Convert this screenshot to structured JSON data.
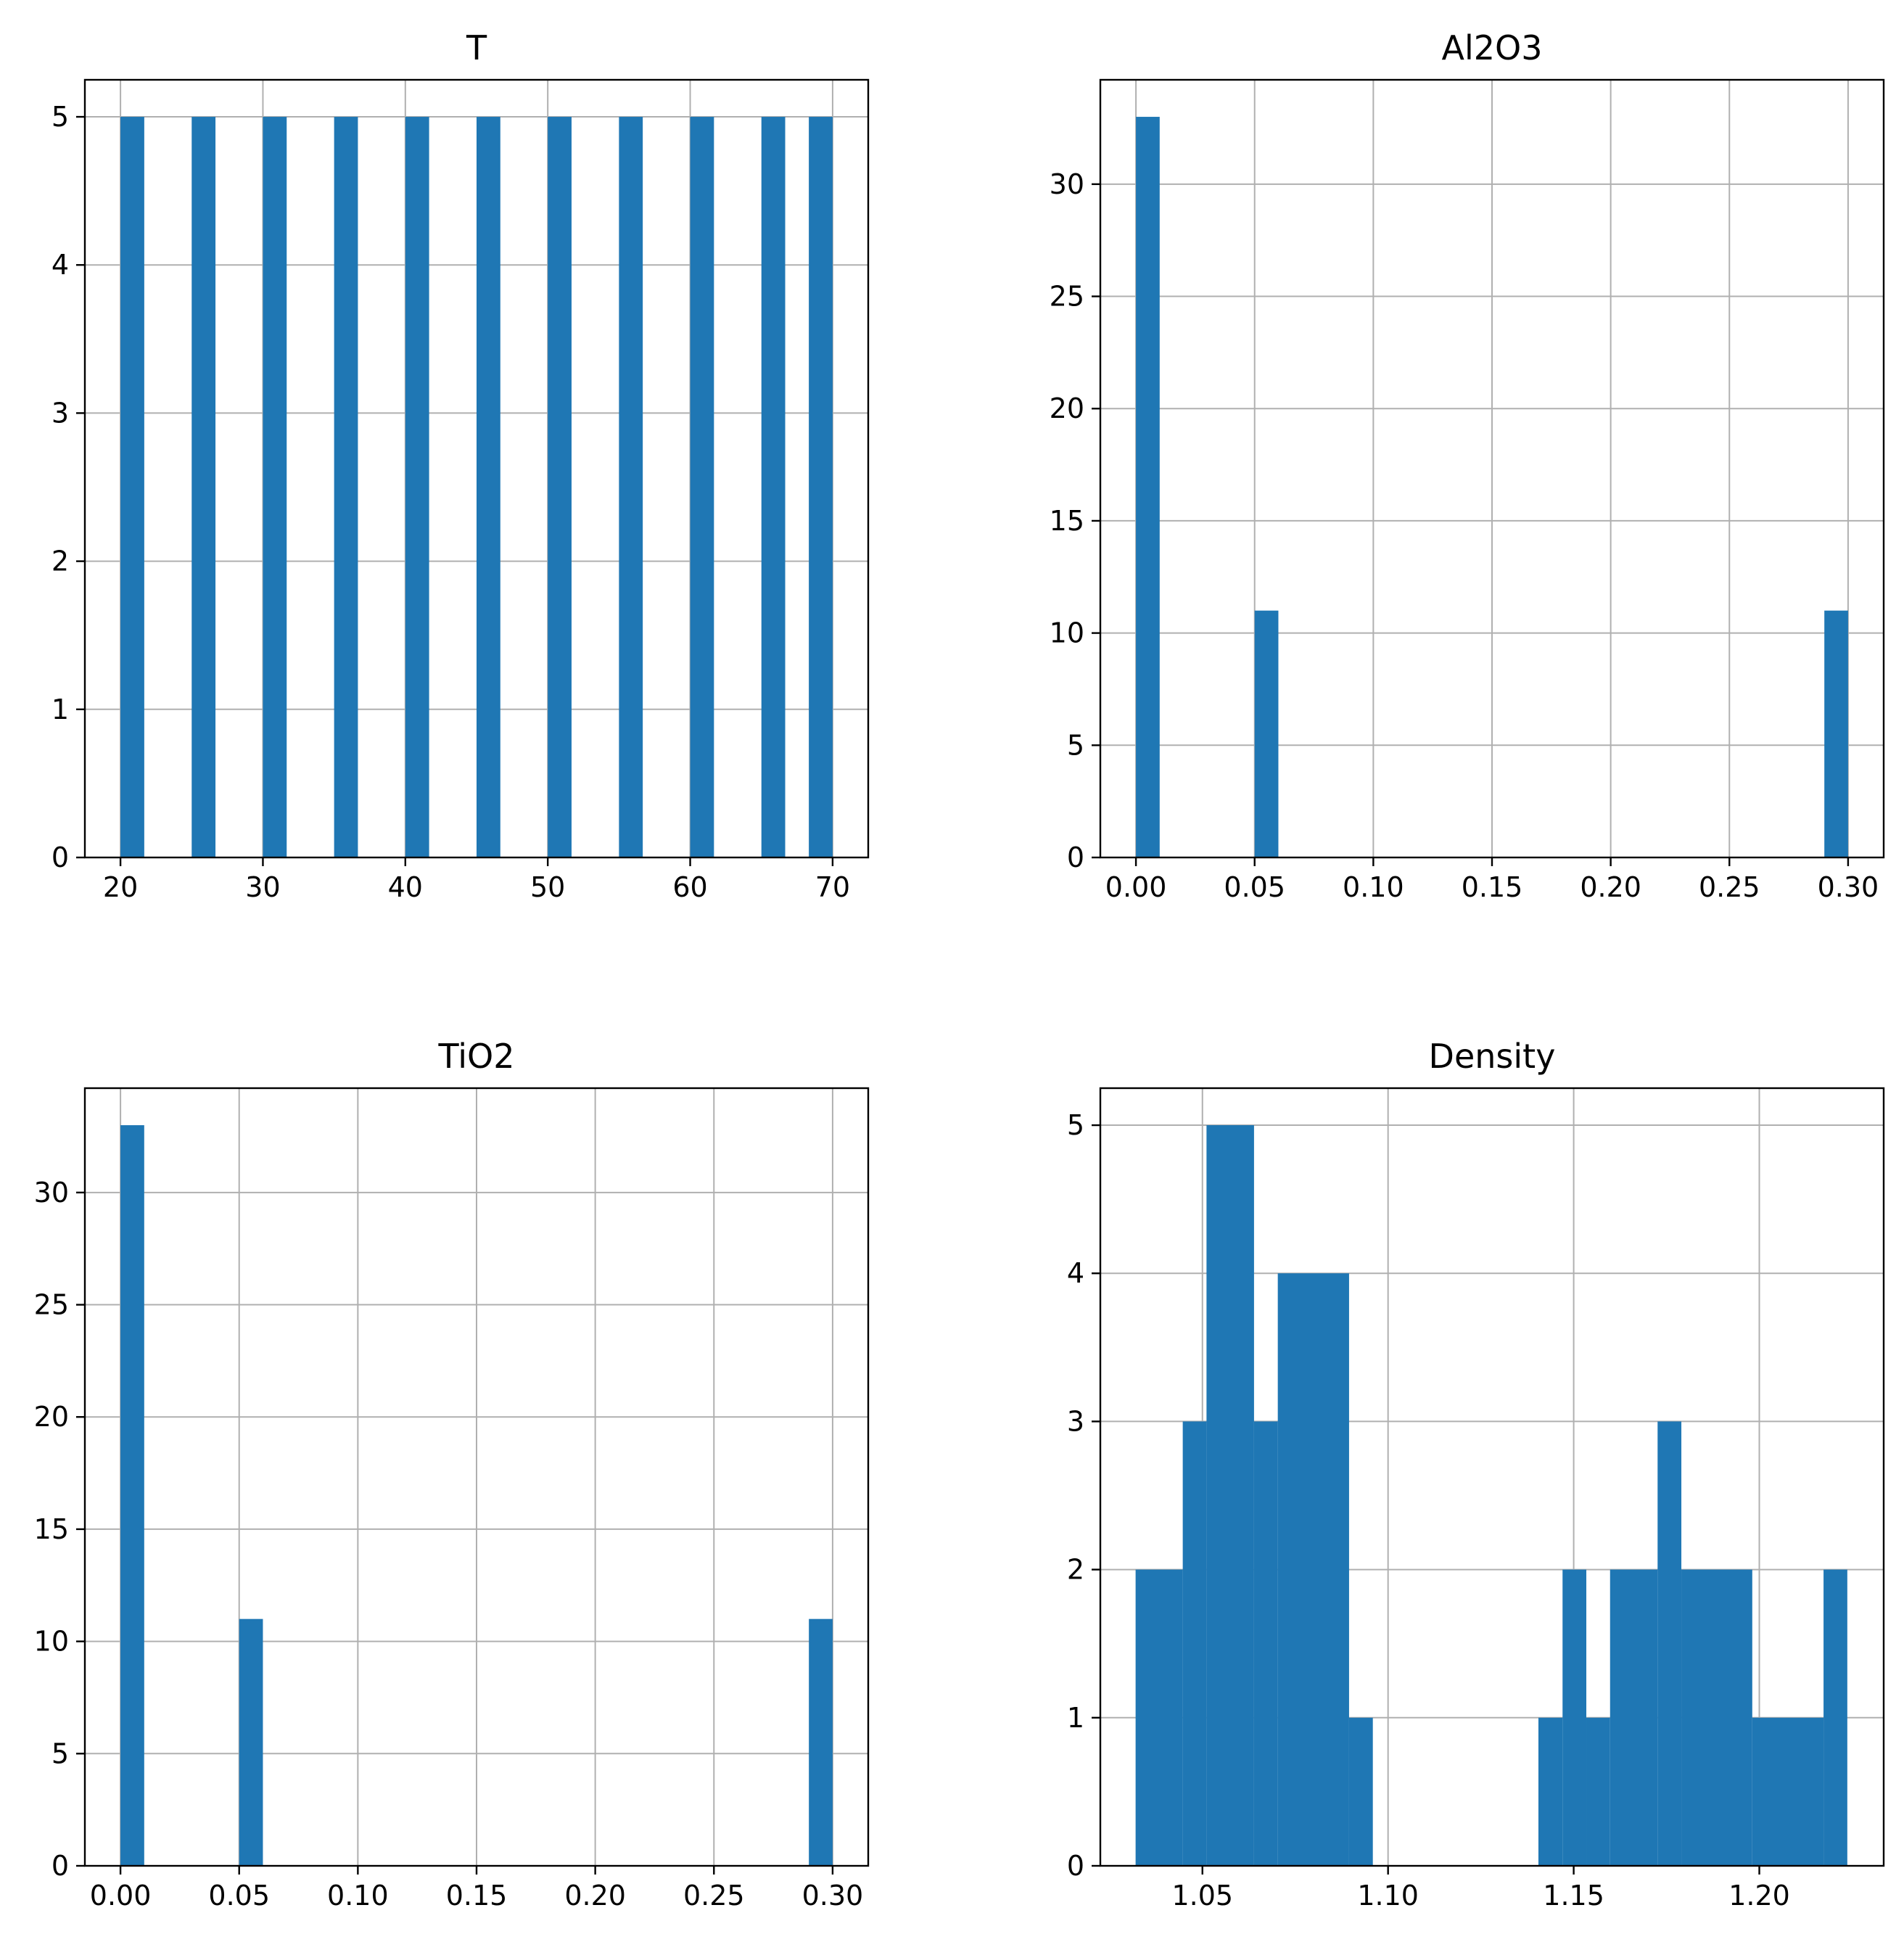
{
  "figure": {
    "background": "#ffffff",
    "bar_color": "#1f77b4",
    "grid_color": "#b0b0b0"
  },
  "chart_data": [
    {
      "type": "bar",
      "title": "T",
      "xlabel": "",
      "ylabel": "",
      "xlim": [
        17.5,
        72.5
      ],
      "ylim": [
        0,
        5.25
      ],
      "xticks": [
        "20",
        "30",
        "40",
        "50",
        "60",
        "70"
      ],
      "xtick_values": [
        20,
        30,
        40,
        50,
        60,
        70
      ],
      "yticks": [
        "0",
        "1",
        "2",
        "3",
        "4",
        "5"
      ],
      "ytick_values": [
        0,
        1,
        2,
        3,
        4,
        5
      ],
      "grid": true,
      "bins": [
        {
          "x0": 20.0,
          "x1": 21.67,
          "count": 5
        },
        {
          "x0": 25.0,
          "x1": 26.67,
          "count": 5
        },
        {
          "x0": 30.0,
          "x1": 31.67,
          "count": 5
        },
        {
          "x0": 35.0,
          "x1": 36.67,
          "count": 5
        },
        {
          "x0": 40.0,
          "x1": 41.67,
          "count": 5
        },
        {
          "x0": 45.0,
          "x1": 46.67,
          "count": 5
        },
        {
          "x0": 50.0,
          "x1": 51.67,
          "count": 5
        },
        {
          "x0": 55.0,
          "x1": 56.67,
          "count": 5
        },
        {
          "x0": 60.0,
          "x1": 61.67,
          "count": 5
        },
        {
          "x0": 65.0,
          "x1": 66.67,
          "count": 5
        },
        {
          "x0": 68.33,
          "x1": 70.0,
          "count": 5
        }
      ]
    },
    {
      "type": "bar",
      "title": "Al2O3",
      "xlabel": "",
      "ylabel": "",
      "xlim": [
        -0.015,
        0.315
      ],
      "ylim": [
        0,
        34.65
      ],
      "xticks": [
        "0.00",
        "0.05",
        "0.10",
        "0.15",
        "0.20",
        "0.25",
        "0.30"
      ],
      "xtick_values": [
        0,
        0.05,
        0.1,
        0.15,
        0.2,
        0.25,
        0.3
      ],
      "yticks": [
        "0",
        "5",
        "10",
        "15",
        "20",
        "25",
        "30"
      ],
      "ytick_values": [
        0,
        5,
        10,
        15,
        20,
        25,
        30
      ],
      "grid": true,
      "bins": [
        {
          "x0": 0.0,
          "x1": 0.01,
          "count": 33
        },
        {
          "x0": 0.05,
          "x1": 0.06,
          "count": 11
        },
        {
          "x0": 0.29,
          "x1": 0.3,
          "count": 11
        }
      ]
    },
    {
      "type": "bar",
      "title": "TiO2",
      "xlabel": "",
      "ylabel": "",
      "xlim": [
        -0.015,
        0.315
      ],
      "ylim": [
        0,
        34.65
      ],
      "xticks": [
        "0.00",
        "0.05",
        "0.10",
        "0.15",
        "0.20",
        "0.25",
        "0.30"
      ],
      "xtick_values": [
        0,
        0.05,
        0.1,
        0.15,
        0.2,
        0.25,
        0.3
      ],
      "yticks": [
        "0",
        "5",
        "10",
        "15",
        "20",
        "25",
        "30"
      ],
      "ytick_values": [
        0,
        5,
        10,
        15,
        20,
        25,
        30
      ],
      "grid": true,
      "bins": [
        {
          "x0": 0.0,
          "x1": 0.01,
          "count": 33
        },
        {
          "x0": 0.05,
          "x1": 0.06,
          "count": 11
        },
        {
          "x0": 0.29,
          "x1": 0.3,
          "count": 11
        }
      ]
    },
    {
      "type": "bar",
      "title": "Density",
      "xlabel": "",
      "ylabel": "",
      "xlim": [
        1.0225,
        1.2335
      ],
      "ylim": [
        0,
        5.25
      ],
      "xticks": [
        "1.05",
        "1.10",
        "1.15",
        "1.20"
      ],
      "xtick_values": [
        1.05,
        1.1,
        1.15,
        1.2
      ],
      "yticks": [
        "0",
        "1",
        "2",
        "3",
        "4",
        "5"
      ],
      "ytick_values": [
        0,
        1,
        2,
        3,
        4,
        5
      ],
      "grid": true,
      "bins": [
        {
          "x0": 1.032,
          "x1": 1.0447,
          "count": 2
        },
        {
          "x0": 1.0447,
          "x1": 1.0511,
          "count": 3
        },
        {
          "x0": 1.0511,
          "x1": 1.0639,
          "count": 5
        },
        {
          "x0": 1.0639,
          "x1": 1.0703,
          "count": 3
        },
        {
          "x0": 1.0703,
          "x1": 1.0895,
          "count": 4
        },
        {
          "x0": 1.0895,
          "x1": 1.0959,
          "count": 1
        },
        {
          "x0": 1.1405,
          "x1": 1.147,
          "count": 1
        },
        {
          "x0": 1.147,
          "x1": 1.1534,
          "count": 2
        },
        {
          "x0": 1.1534,
          "x1": 1.1598,
          "count": 1
        },
        {
          "x0": 1.1598,
          "x1": 1.1726,
          "count": 2
        },
        {
          "x0": 1.1726,
          "x1": 1.179,
          "count": 3
        },
        {
          "x0": 1.179,
          "x1": 1.1981,
          "count": 2
        },
        {
          "x0": 1.1981,
          "x1": 1.2173,
          "count": 1
        },
        {
          "x0": 1.2173,
          "x1": 1.2237,
          "count": 2
        }
      ]
    }
  ]
}
